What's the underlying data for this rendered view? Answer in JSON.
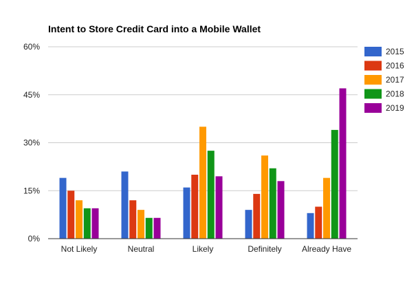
{
  "chart_data": {
    "type": "bar",
    "title": "Intent to Store Credit Card into a Mobile Wallet",
    "xlabel": "",
    "ylabel": "",
    "categories": [
      "Not Likely",
      "Neutral",
      "Likely",
      "Definitely",
      "Already Have"
    ],
    "series": [
      {
        "name": "2015",
        "color": "#3366cc",
        "values": [
          19,
          21,
          16,
          9,
          8
        ]
      },
      {
        "name": "2016",
        "color": "#dc3912",
        "values": [
          15,
          12,
          20,
          14,
          10
        ]
      },
      {
        "name": "2017",
        "color": "#ff9900",
        "values": [
          12,
          9,
          35,
          26,
          19
        ]
      },
      {
        "name": "2018",
        "color": "#109618",
        "values": [
          9.5,
          6.5,
          27.5,
          22,
          34
        ]
      },
      {
        "name": "2019",
        "color": "#990099",
        "values": [
          9.5,
          6.5,
          19.5,
          18,
          47
        ]
      }
    ],
    "ylim": [
      0,
      60
    ],
    "yticks": [
      0,
      15,
      30,
      45,
      60
    ],
    "ytick_labels": [
      "0%",
      "15%",
      "30%",
      "45%",
      "60%"
    ],
    "grid": true,
    "legend": "right"
  }
}
